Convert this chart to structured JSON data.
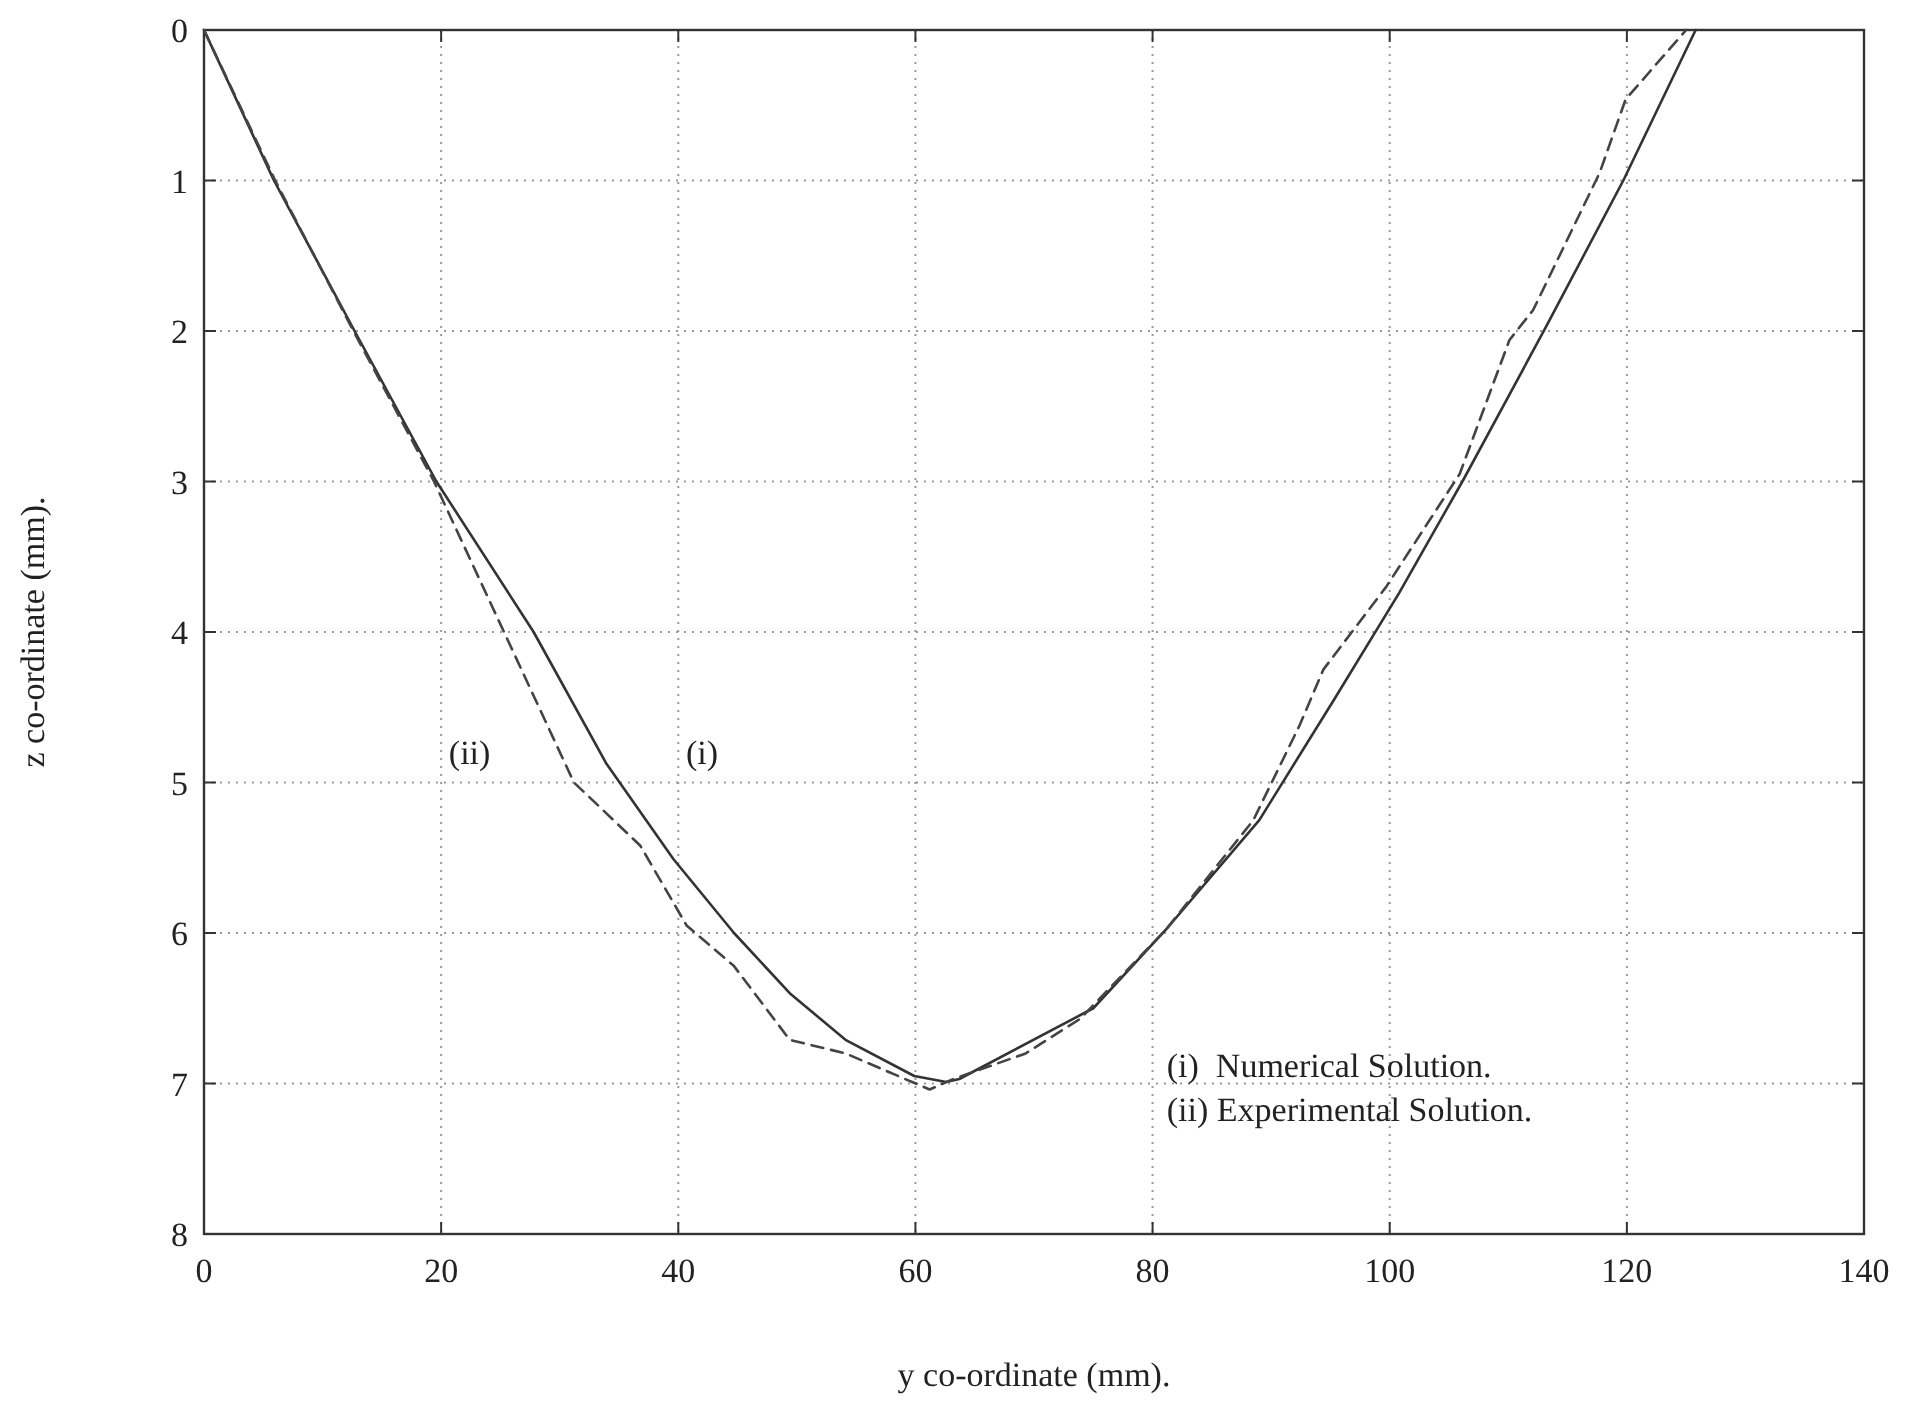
{
  "chart_data": {
    "type": "line",
    "xlabel": "y co-ordinate (mm).",
    "ylabel": "z co-ordinate (mm).",
    "xlim": [
      0,
      140
    ],
    "xticks": [
      0,
      20,
      40,
      60,
      80,
      100,
      120,
      140
    ],
    "ylim": [
      8,
      0
    ],
    "yticks": [
      0,
      1,
      2,
      3,
      4,
      5,
      6,
      7,
      8
    ],
    "grid": true,
    "series": [
      {
        "color": "#333333",
        "line_style": "solid",
        "x": [
          0,
          5.9,
          12.7,
          19.6,
          27.8,
          33.9,
          39.6,
          44.7,
          49.4,
          54.1,
          59.9,
          62.6,
          63.7,
          75,
          81.1,
          89,
          95.3,
          100.8,
          106.2,
          113.2,
          119.7,
          125.8
        ],
        "values": [
          0,
          1,
          2,
          3,
          4,
          4.87,
          5.51,
          6.0,
          6.4,
          6.71,
          6.95,
          6.99,
          6.97,
          6.5,
          5.98,
          5.25,
          4.45,
          3.74,
          2.99,
          1.97,
          1.0,
          0
        ]
      },
      {
        "color": "#444444",
        "line_style": "dashed",
        "x": [
          0,
          6,
          12.6,
          19.4,
          25.3,
          31.2,
          36.8,
          40.7,
          44.7,
          49.4,
          54.1,
          61.2,
          63.2,
          69.3,
          73.9,
          81.1,
          88.5,
          92.4,
          94.4,
          99.7,
          105.9,
          110.1,
          112.1,
          117.7,
          119.9,
          125
        ],
        "values": [
          0,
          1,
          2,
          3,
          4,
          5.0,
          5.42,
          5.95,
          6.22,
          6.71,
          6.8,
          7.04,
          6.97,
          6.8,
          6.57,
          5.98,
          5.25,
          4.62,
          4.25,
          3.7,
          2.95,
          2.06,
          1.86,
          0.95,
          0.46,
          0
        ]
      }
    ],
    "annotations": [
      "(ii)",
      "(i)",
      "(i)  Numerical Solution.",
      "(ii) Experimental Solution."
    ]
  }
}
